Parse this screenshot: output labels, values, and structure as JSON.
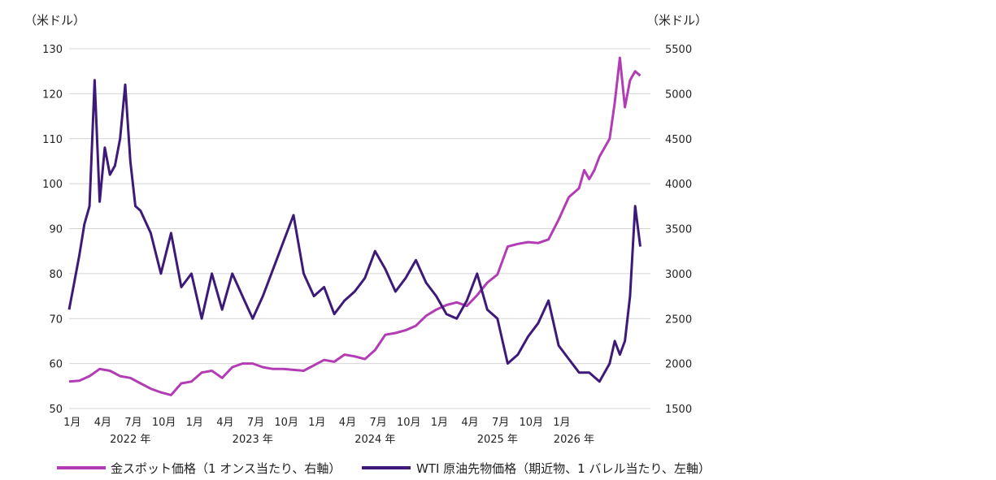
{
  "chart_data": {
    "type": "line",
    "left_axis": {
      "unit": "（米ドル）",
      "range": [
        50,
        130
      ],
      "ticks": [
        50,
        60,
        70,
        80,
        90,
        100,
        110,
        120,
        130
      ]
    },
    "right_axis": {
      "unit": "（米ドル）",
      "range": [
        1500,
        5500
      ],
      "ticks": [
        1500,
        2000,
        2500,
        3000,
        3500,
        4000,
        4500,
        5000,
        5500
      ]
    },
    "x_axis": {
      "month_labels": [
        "1月",
        "4月",
        "7月",
        "10月",
        "1月",
        "4月",
        "7月",
        "10月",
        "1月",
        "4月",
        "7月",
        "10月",
        "1月",
        "4月",
        "7月",
        "10月",
        "1月"
      ],
      "year_labels": [
        "2022 年",
        "2023 年",
        "2024 年",
        "2025 年",
        "2026 年"
      ]
    },
    "grid": true,
    "legend_position": "bottom",
    "colors": {
      "gold": "#b23cb4",
      "wti": "#3d1a78",
      "grid": "#d4d4d4"
    },
    "series": [
      {
        "name": "金スポット価格（1 オンス当たり、右軸）",
        "axis": "right",
        "x": [
          0,
          1,
          2,
          3,
          4,
          5,
          6,
          7,
          8,
          9,
          10,
          11,
          12,
          13,
          14,
          15,
          16,
          17,
          18,
          19,
          20,
          21,
          22,
          23,
          24,
          25,
          26,
          27,
          28,
          29,
          30,
          31,
          32,
          33,
          34,
          35,
          36,
          37,
          38,
          39,
          40,
          41,
          42,
          43,
          44,
          45,
          46,
          47,
          48,
          49,
          50,
          50.5,
          51,
          51.5,
          52,
          52.5,
          53,
          53.5,
          54,
          54.5,
          55,
          55.5,
          56
        ],
        "values": [
          1800,
          1810,
          1860,
          1940,
          1920,
          1860,
          1840,
          1780,
          1720,
          1680,
          1650,
          1780,
          1800,
          1900,
          1920,
          1840,
          1960,
          2000,
          2000,
          1960,
          1940,
          1940,
          1930,
          1920,
          1980,
          2040,
          2020,
          2100,
          2080,
          2050,
          2150,
          2320,
          2340,
          2370,
          2420,
          2530,
          2600,
          2650,
          2680,
          2640,
          2760,
          2900,
          2990,
          3300,
          3330,
          3350,
          3340,
          3380,
          3600,
          3850,
          3950,
          4150,
          4050,
          4150,
          4300,
          4400,
          4500,
          4900,
          5400,
          4850,
          5150,
          5250,
          5200
        ]
      },
      {
        "name": "WTI 原油先物価格（期近物、1 バレル当たり、左軸）",
        "axis": "left",
        "x": [
          0,
          0.5,
          1,
          1.5,
          2,
          2.5,
          3,
          3.5,
          4,
          4.5,
          5,
          5.5,
          6,
          6.5,
          7,
          8,
          9,
          10,
          11,
          12,
          13,
          14,
          15,
          16,
          17,
          18,
          19,
          20,
          21,
          22,
          23,
          24,
          25,
          26,
          27,
          28,
          29,
          30,
          31,
          32,
          33,
          34,
          35,
          36,
          37,
          38,
          39,
          40,
          41,
          42,
          43,
          44,
          45,
          46,
          47,
          48,
          49,
          50,
          51,
          52,
          53,
          53.5,
          54,
          54.5,
          55,
          55.5,
          56
        ],
        "values": [
          72,
          78,
          84,
          91,
          95,
          123,
          96,
          108,
          102,
          104,
          110,
          122,
          105,
          95,
          94,
          89,
          80,
          89,
          77,
          80,
          70,
          80,
          72,
          80,
          75,
          70,
          75,
          81,
          87,
          93,
          80,
          75,
          77,
          71,
          74,
          76,
          79,
          85,
          81,
          76,
          79,
          83,
          78,
          75,
          71,
          70,
          74,
          80,
          72,
          70,
          60,
          62,
          66,
          69,
          74,
          64,
          61,
          58,
          58,
          56,
          60,
          65,
          62,
          65,
          75,
          95,
          86
        ]
      }
    ]
  }
}
